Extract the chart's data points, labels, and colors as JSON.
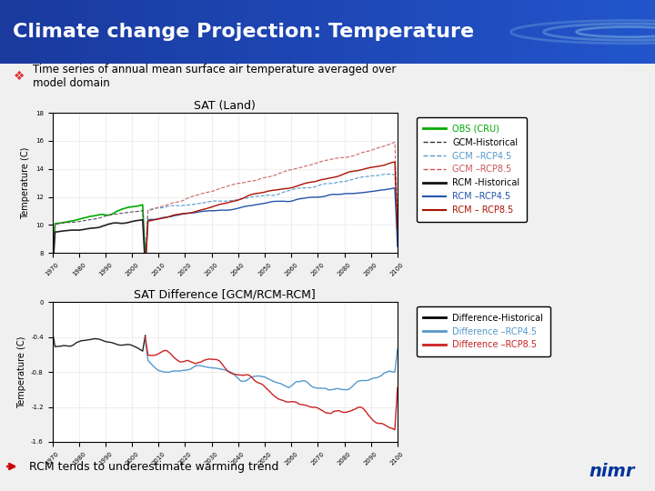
{
  "title": "Climate change Projection: Temperature",
  "subtitle": "Time series of annual mean surface air temperature averaged over\nmodel domain",
  "title_bg_color_left": "#1a3a9e",
  "title_bg_color_right": "#2255cc",
  "title_text_color": "#ffffff",
  "subtitle_bullet_color": "#cc0000",
  "plot1_title": "SAT (Land)",
  "plot1_ylabel": "Temperature (C)",
  "plot1_xlim": [
    1970,
    2100
  ],
  "plot1_ylim": [
    8,
    18
  ],
  "plot1_yticks": [
    8,
    10,
    12,
    14,
    16,
    18
  ],
  "plot1_xticks": [
    1970,
    1980,
    1990,
    2000,
    2010,
    2020,
    2030,
    2040,
    2050,
    2060,
    2070,
    2080,
    2090,
    2100
  ],
  "plot2_title": "SAT Difference [GCM/RCM-RCM]",
  "plot2_ylabel": "Temperature (C)",
  "plot2_xlim": [
    1970,
    2100
  ],
  "plot2_ylim": [
    -1.6,
    0
  ],
  "plot2_yticks": [
    -1.6,
    -1.2,
    -0.8,
    -0.4,
    0
  ],
  "plot2_xticks": [
    1970,
    1980,
    1990,
    2000,
    2010,
    2020,
    2030,
    2040,
    2050,
    2060,
    2070,
    2080,
    2090,
    2100
  ],
  "legend1_entries": [
    {
      "label": "OBS (CRU)",
      "color": "#00aa00",
      "linestyle": "-"
    },
    {
      "label": "GCM-Historical",
      "color": "#000000",
      "linestyle": "-"
    },
    {
      "label": "GCM –RCP4.5",
      "color": "#5599cc",
      "linestyle": "-"
    },
    {
      "label": "GCM –RCP8.5",
      "color": "#cc4444",
      "linestyle": "-"
    },
    {
      "label": "RCM -Historical",
      "color": "#000000",
      "linestyle": "-"
    },
    {
      "label": "RCM –RCP4.5",
      "color": "#2255aa",
      "linestyle": "-"
    },
    {
      "label": "RCM – RCP8.5",
      "color": "#aa2200",
      "linestyle": "-"
    }
  ],
  "legend2_entries": [
    {
      "label": "Difference-Historical",
      "color": "#000000",
      "linestyle": "-"
    },
    {
      "label": "Difference –RCP4.5",
      "color": "#5599cc",
      "linestyle": "-"
    },
    {
      "label": "Difference –RCP8.5",
      "color": "#cc3333",
      "linestyle": "-"
    }
  ],
  "footer_text": "RCM tends to underestimate warming trend",
  "footer_arrow_color": "#cc0000",
  "nimr_logo_color": "#003399"
}
